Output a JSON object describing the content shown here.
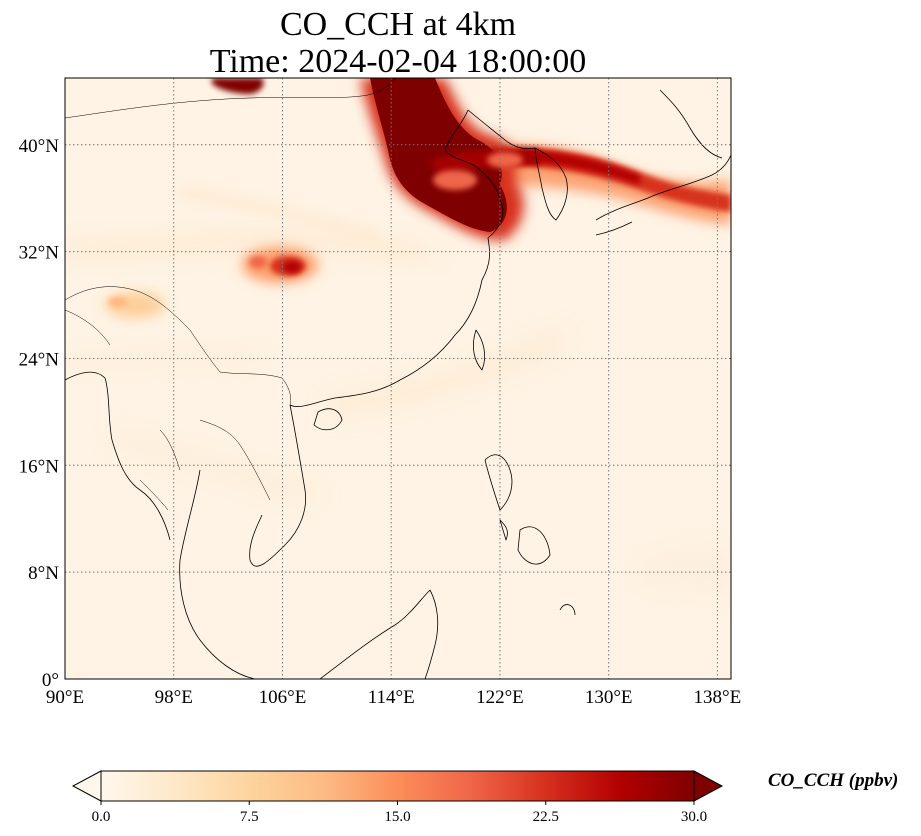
{
  "title": {
    "line1": "CO_CCH at 4km",
    "line2": "Time: 2024-02-04 18:00:00"
  },
  "map": {
    "type": "filled-contour map",
    "variable": "CO_CCH",
    "projection": "PlateCarree",
    "lon_range": [
      90,
      139
    ],
    "lat_range": [
      0,
      45
    ],
    "gridlines": "dotted grey",
    "colormap": "OrRd",
    "x_ticks": [
      "90°E",
      "98°E",
      "106°E",
      "114°E",
      "122°E",
      "130°E",
      "138°E"
    ],
    "y_ticks": [
      "0°",
      "8°N",
      "16°N",
      "24°N",
      "32°N",
      "40°N"
    ],
    "plumes": [
      {
        "region": "North China Plain / Shandong / Yellow Sea",
        "lon": [
          113.5,
          124
        ],
        "lat": [
          32.5,
          45
        ],
        "level": 30
      },
      {
        "region": "Korea - Sea of Japan - Japan",
        "lon": [
          119,
          139
        ],
        "lat": [
          34.5,
          40
        ],
        "level": 22
      },
      {
        "region": "Mongolia (top edge)",
        "lon": [
          101.5,
          104.5
        ],
        "lat": [
          43.5,
          45
        ],
        "level": 30
      },
      {
        "region": "Sichuan Basin",
        "lon": [
          103,
          107.5
        ],
        "lat": [
          29.5,
          31.5
        ],
        "level": 22
      },
      {
        "region": "Northeast India / Yunnan",
        "lon": [
          93,
          96.5
        ],
        "lat": [
          26.5,
          28.5
        ],
        "level": 8
      }
    ]
  },
  "colorbar": {
    "label": "CO_CCH (ppbv)",
    "min": 0.0,
    "max": 30.0,
    "ticks": [
      "0.0",
      "7.5",
      "15.0",
      "22.5",
      "30.0"
    ],
    "extend": "both",
    "colors": [
      "#fff7ec",
      "#fee8c8",
      "#fdd49e",
      "#fdbb84",
      "#fc8d59",
      "#ef6548",
      "#d7301f",
      "#b30000",
      "#7f0000"
    ]
  }
}
